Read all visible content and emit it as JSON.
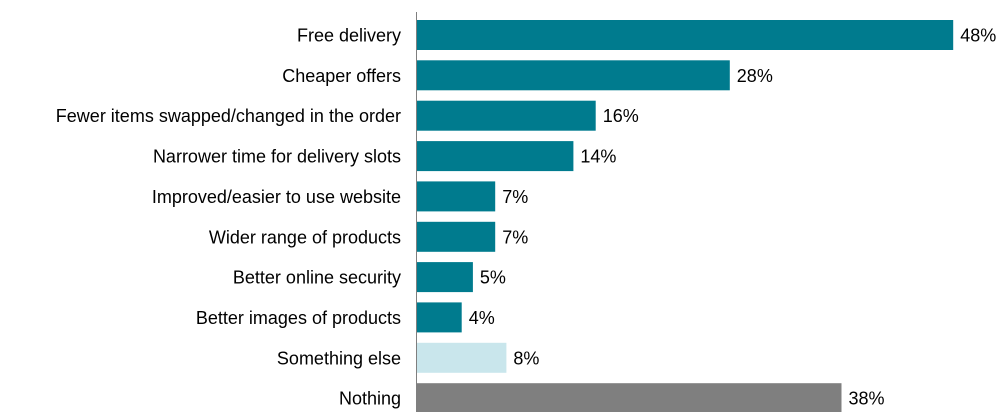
{
  "chart_data": {
    "type": "bar",
    "orientation": "horizontal",
    "title": "",
    "xlabel": "",
    "ylabel": "",
    "xlim": [
      0,
      48
    ],
    "grid": false,
    "legend": "none",
    "categories": [
      "Free delivery",
      "Cheaper offers",
      "Fewer items swapped/changed in the order",
      "Narrower time  for delivery slots",
      "Improved/easier to use website",
      "Wider range of products",
      "Better online security",
      "Better images of products",
      "Something else",
      "Nothing"
    ],
    "values": [
      48,
      28,
      16,
      14,
      7,
      7,
      5,
      4,
      8,
      38
    ],
    "value_labels": [
      "48%",
      "28%",
      "16%",
      "14%",
      "7%",
      "7%",
      "5%",
      "4%",
      "8%",
      "38%"
    ],
    "colors": [
      "#007B8E",
      "#007B8E",
      "#007B8E",
      "#007B8E",
      "#007B8E",
      "#007B8E",
      "#007B8E",
      "#007B8E",
      "#C9E6EC",
      "#7F7F7F"
    ],
    "axis_color": "#7F7F7F"
  }
}
